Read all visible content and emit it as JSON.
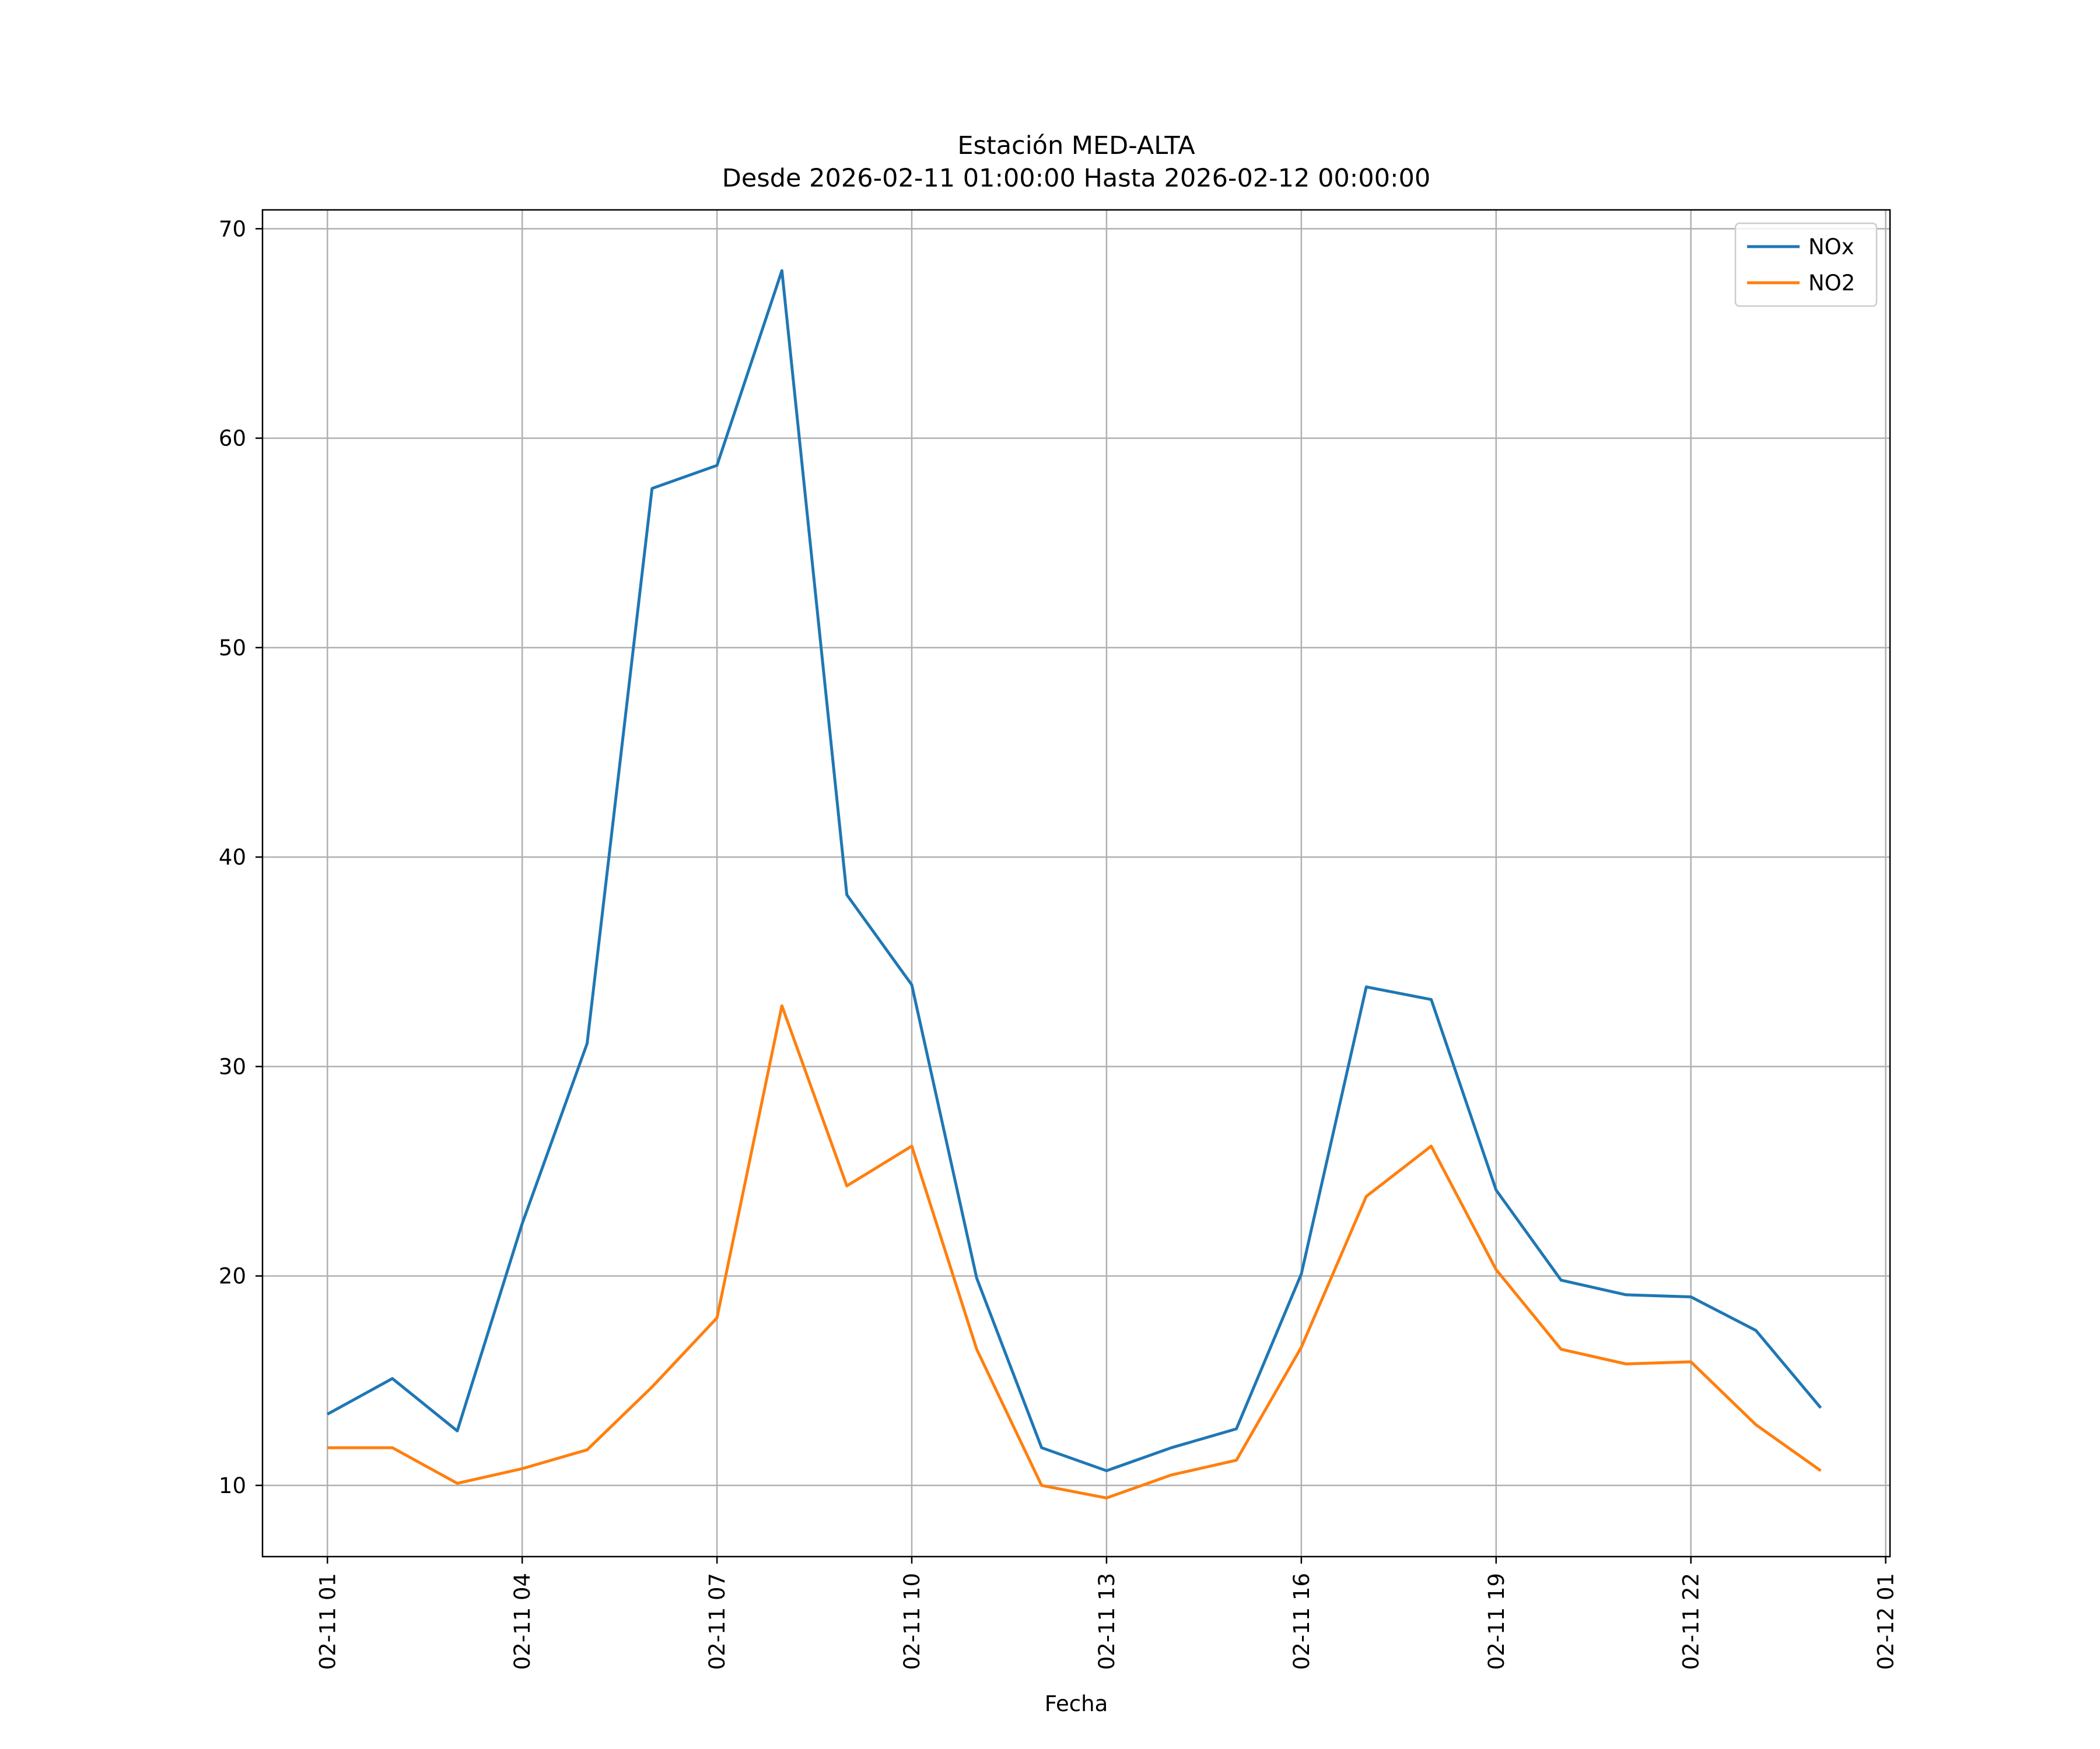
{
  "chart_data": {
    "type": "line",
    "title": "Estación MED-ALTA",
    "subtitle": "Desde 2026-02-11 01:00:00 Hasta 2026-02-12 00:00:00",
    "xlabel": "Fecha",
    "ylabel": "",
    "x": [
      "2026-02-11 01:00",
      "2026-02-11 02:00",
      "2026-02-11 03:00",
      "2026-02-11 04:00",
      "2026-02-11 05:00",
      "2026-02-11 06:00",
      "2026-02-11 07:00",
      "2026-02-11 08:00",
      "2026-02-11 09:00",
      "2026-02-11 10:00",
      "2026-02-11 11:00",
      "2026-02-11 12:00",
      "2026-02-11 13:00",
      "2026-02-11 14:00",
      "2026-02-11 15:00",
      "2026-02-11 16:00",
      "2026-02-11 17:00",
      "2026-02-11 18:00",
      "2026-02-11 19:00",
      "2026-02-11 20:00",
      "2026-02-11 21:00",
      "2026-02-11 22:00",
      "2026-02-11 23:00",
      "2026-02-12 00:00"
    ],
    "series": [
      {
        "name": "NOx",
        "color": "#1f77b4",
        "values": [
          13.4,
          15.1,
          12.6,
          22.5,
          31.1,
          57.6,
          58.7,
          68.0,
          38.2,
          33.9,
          19.9,
          11.8,
          10.7,
          11.8,
          12.7,
          20.1,
          33.8,
          33.2,
          24.1,
          19.8,
          19.1,
          19.0,
          17.4,
          13.7
        ]
      },
      {
        "name": "NO2",
        "color": "#ff7f0e",
        "values": [
          11.8,
          11.8,
          10.1,
          10.8,
          11.7,
          14.7,
          18.0,
          32.9,
          24.3,
          26.2,
          16.5,
          10.0,
          9.4,
          10.5,
          11.2,
          16.6,
          23.8,
          26.2,
          20.3,
          16.5,
          15.8,
          15.9,
          12.9,
          10.7
        ]
      }
    ],
    "ylim": [
      6.6,
      70.9
    ],
    "yticks": [
      10,
      20,
      30,
      40,
      50,
      60,
      70
    ],
    "xlim": [
      "2026-02-11 00:00",
      "2026-02-12 01:04"
    ],
    "xticks": [
      "2026-02-11 01:00",
      "2026-02-11 04:00",
      "2026-02-11 07:00",
      "2026-02-11 10:00",
      "2026-02-11 13:00",
      "2026-02-11 16:00",
      "2026-02-11 19:00",
      "2026-02-11 22:00",
      "2026-02-12 01:00"
    ],
    "xtick_labels": [
      "02-11 01",
      "02-11 04",
      "02-11 07",
      "02-11 10",
      "02-11 13",
      "02-11 16",
      "02-11 19",
      "02-11 22",
      "02-12 01"
    ],
    "grid": true,
    "legend_position": "top-right"
  }
}
